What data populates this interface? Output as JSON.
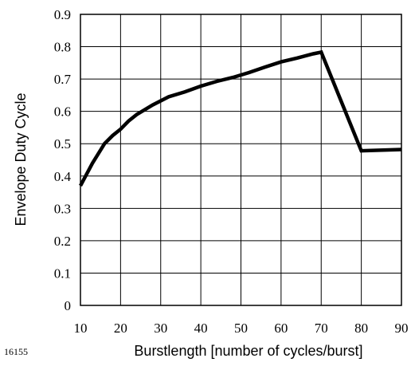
{
  "figure_id": "16155",
  "chart_data": {
    "type": "line",
    "title": "",
    "xlabel": "Burstlength [number of cycles/burst]",
    "ylabel": "Envelope Duty Cycle",
    "xlim": [
      10,
      90
    ],
    "ylim": [
      0,
      0.9
    ],
    "xticks": [
      10,
      20,
      30,
      40,
      50,
      60,
      70,
      80,
      90
    ],
    "yticks": [
      0,
      0.1,
      0.2,
      0.3,
      0.4,
      0.5,
      0.6,
      0.7,
      0.8,
      0.9
    ],
    "xtick_labels": [
      "10",
      "20",
      "30",
      "40",
      "50",
      "60",
      "70",
      "80",
      "90"
    ],
    "ytick_labels": [
      "0",
      "0.1",
      "0.2",
      "0.3",
      "0.4",
      "0.5",
      "0.6",
      "0.7",
      "0.8",
      "0.9"
    ],
    "grid": true,
    "series": [
      {
        "color": "#000000",
        "x": [
          10,
          13,
          16,
          18,
          20,
          22,
          24,
          28,
          32,
          36,
          40,
          44,
          48,
          52,
          56,
          60,
          64,
          68,
          70,
          80,
          90
        ],
        "y": [
          0.37,
          0.44,
          0.5,
          0.525,
          0.545,
          0.57,
          0.59,
          0.62,
          0.645,
          0.66,
          0.678,
          0.693,
          0.705,
          0.72,
          0.737,
          0.753,
          0.765,
          0.778,
          0.783,
          0.478,
          0.482
        ]
      }
    ]
  }
}
